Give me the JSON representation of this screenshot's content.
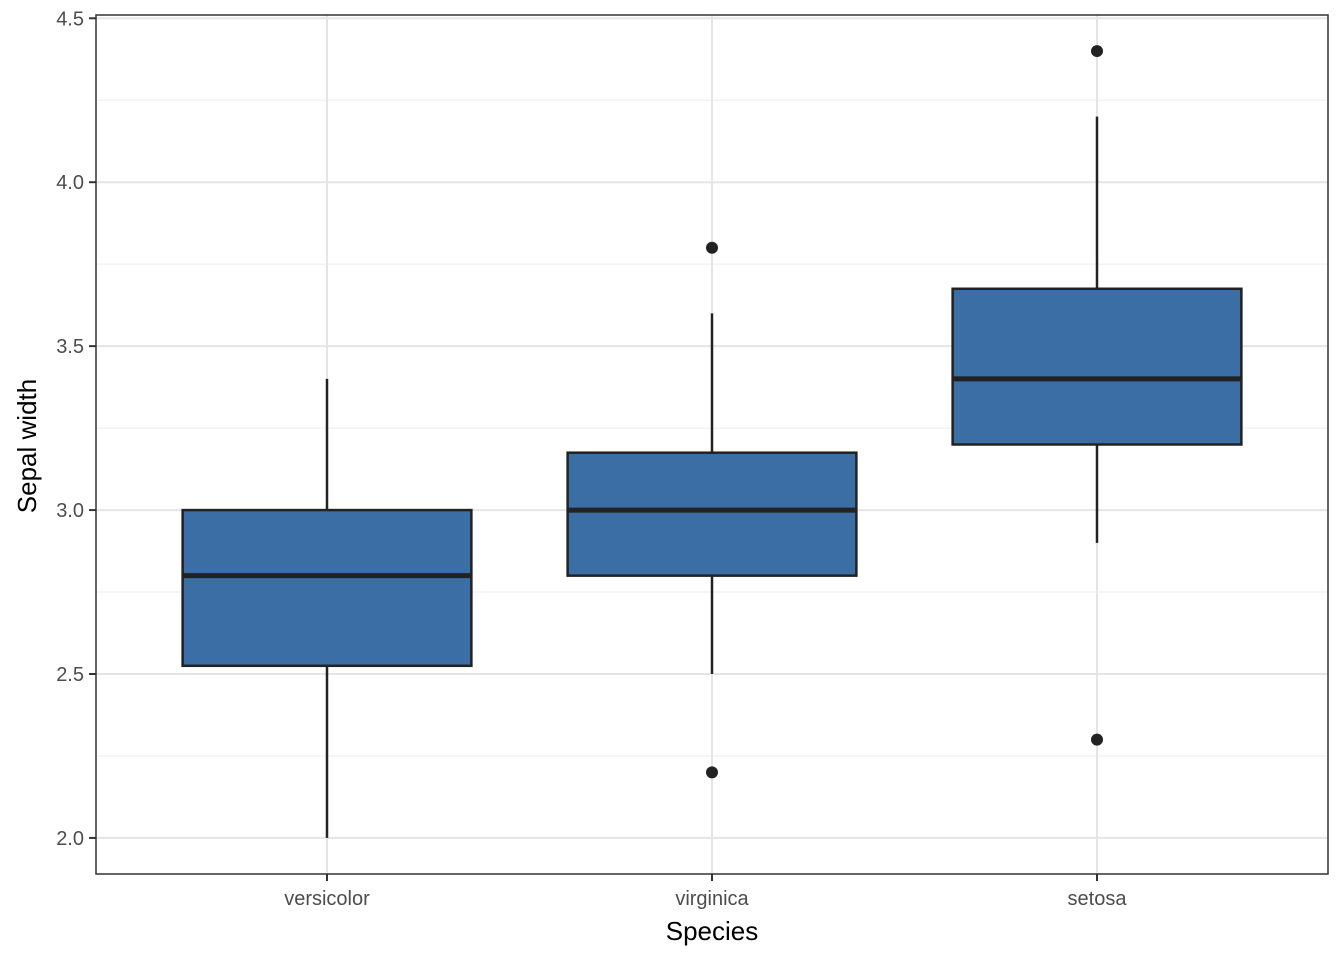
{
  "chart_data": {
    "type": "boxplot",
    "xlabel": "Species",
    "ylabel": "Sepal width",
    "ylim": [
      1.89,
      4.51
    ],
    "yticks": [
      2.0,
      2.5,
      3.0,
      3.5,
      4.0,
      4.5
    ],
    "ytick_labels": [
      "2.0",
      "2.5",
      "3.0",
      "3.5",
      "4.0",
      "4.5"
    ],
    "categories": [
      "versicolor",
      "virginica",
      "setosa"
    ],
    "boxes": [
      {
        "category": "versicolor",
        "whisker_low": 2.0,
        "q1": 2.525,
        "median": 2.8,
        "q3": 3.0,
        "whisker_high": 3.4,
        "outliers": []
      },
      {
        "category": "virginica",
        "whisker_low": 2.5,
        "q1": 2.8,
        "median": 3.0,
        "q3": 3.175,
        "whisker_high": 3.6,
        "outliers": [
          2.2,
          3.8
        ]
      },
      {
        "category": "setosa",
        "whisker_low": 2.9,
        "q1": 3.2,
        "median": 3.4,
        "q3": 3.675,
        "whisker_high": 4.2,
        "outliers": [
          2.3,
          4.4
        ]
      }
    ],
    "grid": true,
    "legend": "none",
    "colors": {
      "box_fill": "#3A6EA5",
      "box_stroke": "#222222",
      "outlier": "#222222"
    }
  }
}
